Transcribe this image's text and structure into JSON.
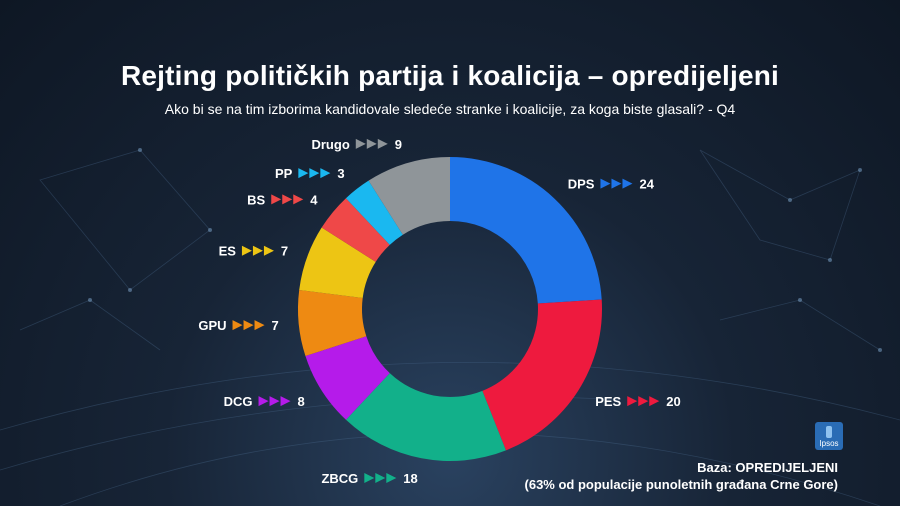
{
  "header": {
    "title": "Rejting političkih partija i koalicija – opredijeljeni",
    "subtitle": "Ako bi se na tim izborima kandidovale sledeće stranke i koalicije, za koga biste glasali? - Q4"
  },
  "footer": {
    "base_line1": "Baza: OPREDIJELJENI",
    "base_line2": "(63% od populacije punoletnih građana Crne Gore)",
    "logo_text": "Ipsos"
  },
  "chart_data": {
    "type": "pie",
    "variant": "donut",
    "start": "top, clockwise",
    "slices": [
      {
        "label": "DPS",
        "value": 24,
        "color": "#1f74e8"
      },
      {
        "label": "PES",
        "value": 20,
        "color": "#ee1a3e"
      },
      {
        "label": "ZBCG",
        "value": 18,
        "color": "#12b08a"
      },
      {
        "label": "DCG",
        "value": 8,
        "color": "#b51bea"
      },
      {
        "label": "GPU",
        "value": 7,
        "color": "#ee8a12"
      },
      {
        "label": "ES",
        "value": 7,
        "color": "#edc514"
      },
      {
        "label": "BS",
        "value": 4,
        "color": "#ef4848"
      },
      {
        "label": "PP",
        "value": 3,
        "color": "#1ab8f0"
      },
      {
        "label": "Drugo",
        "value": 9,
        "color": "#8f9599"
      }
    ]
  }
}
